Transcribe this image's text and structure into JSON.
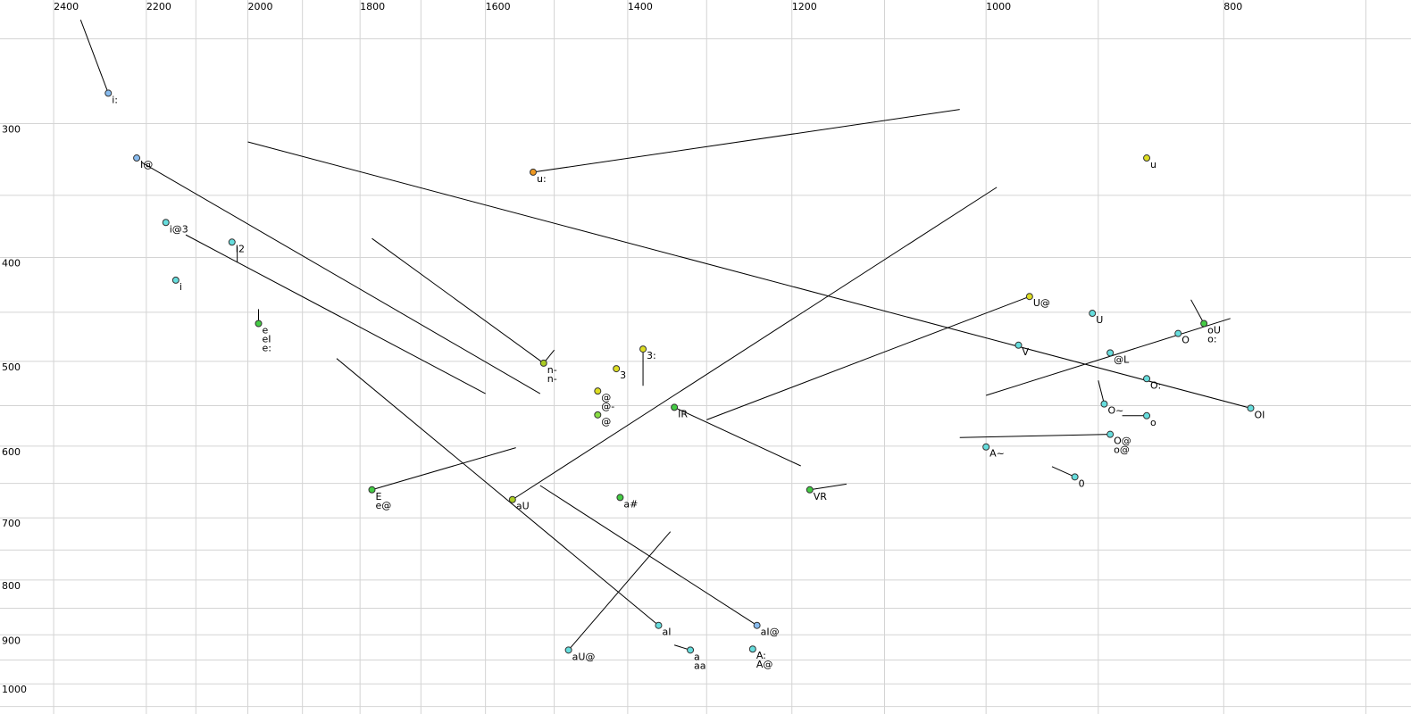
{
  "chart_data": {
    "type": "scatter",
    "xscale": "log",
    "yscale": "log",
    "xlim": [
      2524,
      671
    ],
    "ylim": [
      230,
      1067
    ],
    "xticks": [
      2400,
      2200,
      2000,
      1800,
      1600,
      1400,
      1200,
      1000,
      800
    ],
    "yticks": [
      300,
      400,
      500,
      600,
      700,
      800,
      900,
      1000
    ],
    "xgrid": [
      2400,
      2200,
      2100,
      2000,
      1900,
      1800,
      1700,
      1600,
      1500,
      1400,
      1300,
      1200,
      1100,
      1000,
      900,
      800,
      700
    ],
    "ygrid": [
      250,
      300,
      350,
      400,
      450,
      500,
      550,
      600,
      650,
      700,
      750,
      800,
      850,
      900,
      950,
      1000,
      1050
    ],
    "grid": true,
    "points": [
      {
        "x": 2280,
        "y": 281,
        "color": "#88bbee",
        "labels": [
          "i:"
        ]
      },
      {
        "x": 2220,
        "y": 323,
        "color": "#88bbee",
        "labels": [
          "I@"
        ]
      },
      {
        "x": 2160,
        "y": 371,
        "color": "#66dddd",
        "labels": [
          "i@3"
        ]
      },
      {
        "x": 2030,
        "y": 387,
        "color": "#66dddd",
        "labels": [
          "I2"
        ]
      },
      {
        "x": 2140,
        "y": 420,
        "color": "#66dddd",
        "labels": [
          "i"
        ]
      },
      {
        "x": 1980,
        "y": 461,
        "color": "#44cc44",
        "labels": [
          "e",
          "eI",
          "e:"
        ]
      },
      {
        "x": 1530,
        "y": 333,
        "color": "#ee9922",
        "labels": [
          "u:"
        ]
      },
      {
        "x": 860,
        "y": 323,
        "color": "#dddd22",
        "labels": [
          "u"
        ]
      },
      {
        "x": 960,
        "y": 435,
        "color": "#dddd22",
        "labels": [
          "U@"
        ]
      },
      {
        "x": 905,
        "y": 451,
        "color": "#66dddd",
        "labels": [
          "U"
        ]
      },
      {
        "x": 815,
        "y": 461,
        "color": "#44cc44",
        "labels": [
          "oU",
          "o:"
        ]
      },
      {
        "x": 835,
        "y": 471,
        "color": "#66dddd",
        "labels": [
          "O"
        ]
      },
      {
        "x": 970,
        "y": 483,
        "color": "#66dddd",
        "labels": [
          "V"
        ]
      },
      {
        "x": 890,
        "y": 491,
        "color": "#66dddd",
        "labels": [
          "@L"
        ]
      },
      {
        "x": 860,
        "y": 519,
        "color": "#66dddd",
        "labels": [
          "O:"
        ]
      },
      {
        "x": 780,
        "y": 553,
        "color": "#66dddd",
        "labels": [
          "OI"
        ]
      },
      {
        "x": 895,
        "y": 548,
        "color": "#66dddd",
        "labels": [
          "O~"
        ]
      },
      {
        "x": 860,
        "y": 562,
        "color": "#66dddd",
        "labels": [
          "o"
        ]
      },
      {
        "x": 890,
        "y": 585,
        "color": "#66dddd",
        "labels": [
          "O@",
          "o@"
        ]
      },
      {
        "x": 1000,
        "y": 601,
        "color": "#66dddd",
        "labels": [
          "A~"
        ]
      },
      {
        "x": 920,
        "y": 641,
        "color": "#66dddd",
        "labels": [
          "0"
        ]
      },
      {
        "x": 1515,
        "y": 502,
        "color": "#aacc22",
        "labels": [
          "n-",
          "n-"
        ]
      },
      {
        "x": 1415,
        "y": 508,
        "color": "#dddd22",
        "labels": [
          "3"
        ]
      },
      {
        "x": 1380,
        "y": 487,
        "color": "#dddd22",
        "labels": [
          "3:"
        ]
      },
      {
        "x": 1440,
        "y": 533,
        "color": "#dddd22",
        "labels": [
          "@",
          "@-"
        ]
      },
      {
        "x": 1440,
        "y": 561,
        "color": "#88dd44",
        "labels": [
          "@"
        ]
      },
      {
        "x": 1340,
        "y": 552,
        "color": "#44cc44",
        "labels": [
          "IR"
        ]
      },
      {
        "x": 1180,
        "y": 659,
        "color": "#44cc44",
        "labels": [
          "VR"
        ]
      },
      {
        "x": 1780,
        "y": 659,
        "color": "#44cc44",
        "labels": [
          "E",
          "e@"
        ]
      },
      {
        "x": 1560,
        "y": 673,
        "color": "#aacc22",
        "labels": [
          "aU"
        ]
      },
      {
        "x": 1410,
        "y": 670,
        "color": "#44cc44",
        "labels": [
          "a#"
        ]
      },
      {
        "x": 1360,
        "y": 882,
        "color": "#66dddd",
        "labels": [
          "aI"
        ]
      },
      {
        "x": 1320,
        "y": 930,
        "color": "#66dddd",
        "labels": [
          "a",
          "aa"
        ]
      },
      {
        "x": 1480,
        "y": 930,
        "color": "#66dddd",
        "labels": [
          "aU@"
        ]
      },
      {
        "x": 1240,
        "y": 882,
        "color": "#88bbee",
        "labels": [
          "aI@"
        ]
      },
      {
        "x": 1245,
        "y": 928,
        "color": "#66dddd",
        "labels": [
          "A:",
          "A@"
        ]
      }
    ],
    "trajectories": [
      {
        "x": [
          2340,
          2280
        ],
        "y": [
          240,
          281
        ]
      },
      {
        "x": [
          2210,
          1520
        ],
        "y": [
          326,
          536
        ]
      },
      {
        "x": [
          2120,
          1600
        ],
        "y": [
          381,
          536
        ]
      },
      {
        "x": [
          2020,
          2020
        ],
        "y": [
          391,
          404
        ]
      },
      {
        "x": [
          1980,
          1980
        ],
        "y": [
          447,
          461
        ]
      },
      {
        "x": [
          1530,
          1025
        ],
        "y": [
          333,
          291
        ]
      },
      {
        "x": [
          2000,
          780
        ],
        "y": [
          312,
          553
        ]
      },
      {
        "x": [
          1780,
          1515
        ],
        "y": [
          384,
          502
        ]
      },
      {
        "x": [
          1515,
          1500
        ],
        "y": [
          502,
          488
        ]
      },
      {
        "x": [
          1380,
          1380
        ],
        "y": [
          487,
          527
        ]
      },
      {
        "x": [
          960,
          1300
        ],
        "y": [
          435,
          567
        ]
      },
      {
        "x": [
          1560,
          990
        ],
        "y": [
          673,
          344
        ]
      },
      {
        "x": [
          1000,
          795
        ],
        "y": [
          538,
          456
        ]
      },
      {
        "x": [
          825,
          815
        ],
        "y": [
          438,
          461
        ]
      },
      {
        "x": [
          900,
          895
        ],
        "y": [
          521,
          548
        ]
      },
      {
        "x": [
          880,
          860
        ],
        "y": [
          562,
          562
        ]
      },
      {
        "x": [
          1025,
          890
        ],
        "y": [
          589,
          585
        ]
      },
      {
        "x": [
          940,
          920
        ],
        "y": [
          627,
          641
        ]
      },
      {
        "x": [
          1340,
          1190
        ],
        "y": [
          552,
          626
        ]
      },
      {
        "x": [
          1180,
          1140
        ],
        "y": [
          659,
          651
        ]
      },
      {
        "x": [
          1780,
          1555
        ],
        "y": [
          659,
          602
        ]
      },
      {
        "x": [
          1840,
          1360
        ],
        "y": [
          497,
          882
        ]
      },
      {
        "x": [
          1520,
          1240
        ],
        "y": [
          653,
          882
        ]
      },
      {
        "x": [
          1480,
          1345
        ],
        "y": [
          930,
          721
        ]
      },
      {
        "x": [
          1340,
          1320
        ],
        "y": [
          920,
          930
        ]
      }
    ]
  }
}
